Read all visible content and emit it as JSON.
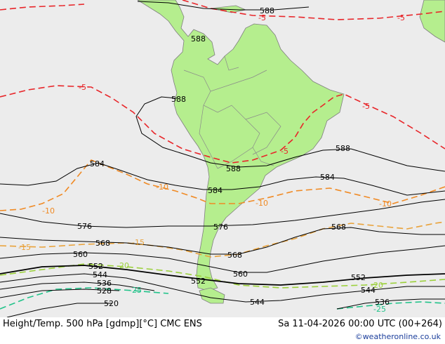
{
  "footer": {
    "title": "Height/Temp. 500 hPa [gdmp][°C] CMC ENS",
    "datetime": "Sa 11-04-2026 00:00 UTC (00+264)",
    "credit": "©weatheronline.co.uk"
  },
  "colors": {
    "ocean": "#ececec",
    "land": "#b5ee8e",
    "coast": "#888888",
    "geopotential": "#000000",
    "temp_minus5": "#e8262a",
    "temp_minus10": "#f08a24",
    "temp_minus15": "#e9a23a",
    "temp_minus20": "#9bd03a",
    "temp_minus25": "#22c38a"
  },
  "geopotential_labels": [
    "588",
    "588",
    "588",
    "588",
    "588",
    "584",
    "584",
    "584",
    "576",
    "576",
    "568",
    "568",
    "568",
    "560",
    "560",
    "552",
    "552",
    "552",
    "544",
    "544",
    "544",
    "536",
    "536",
    "528",
    "520"
  ],
  "temperature_labels": [
    "-5",
    "-5",
    "-5",
    "-5",
    "-5",
    "-10",
    "-10",
    "-10",
    "-10",
    "-15",
    "-15",
    "-20",
    "-20",
    "-25",
    "-25"
  ]
}
